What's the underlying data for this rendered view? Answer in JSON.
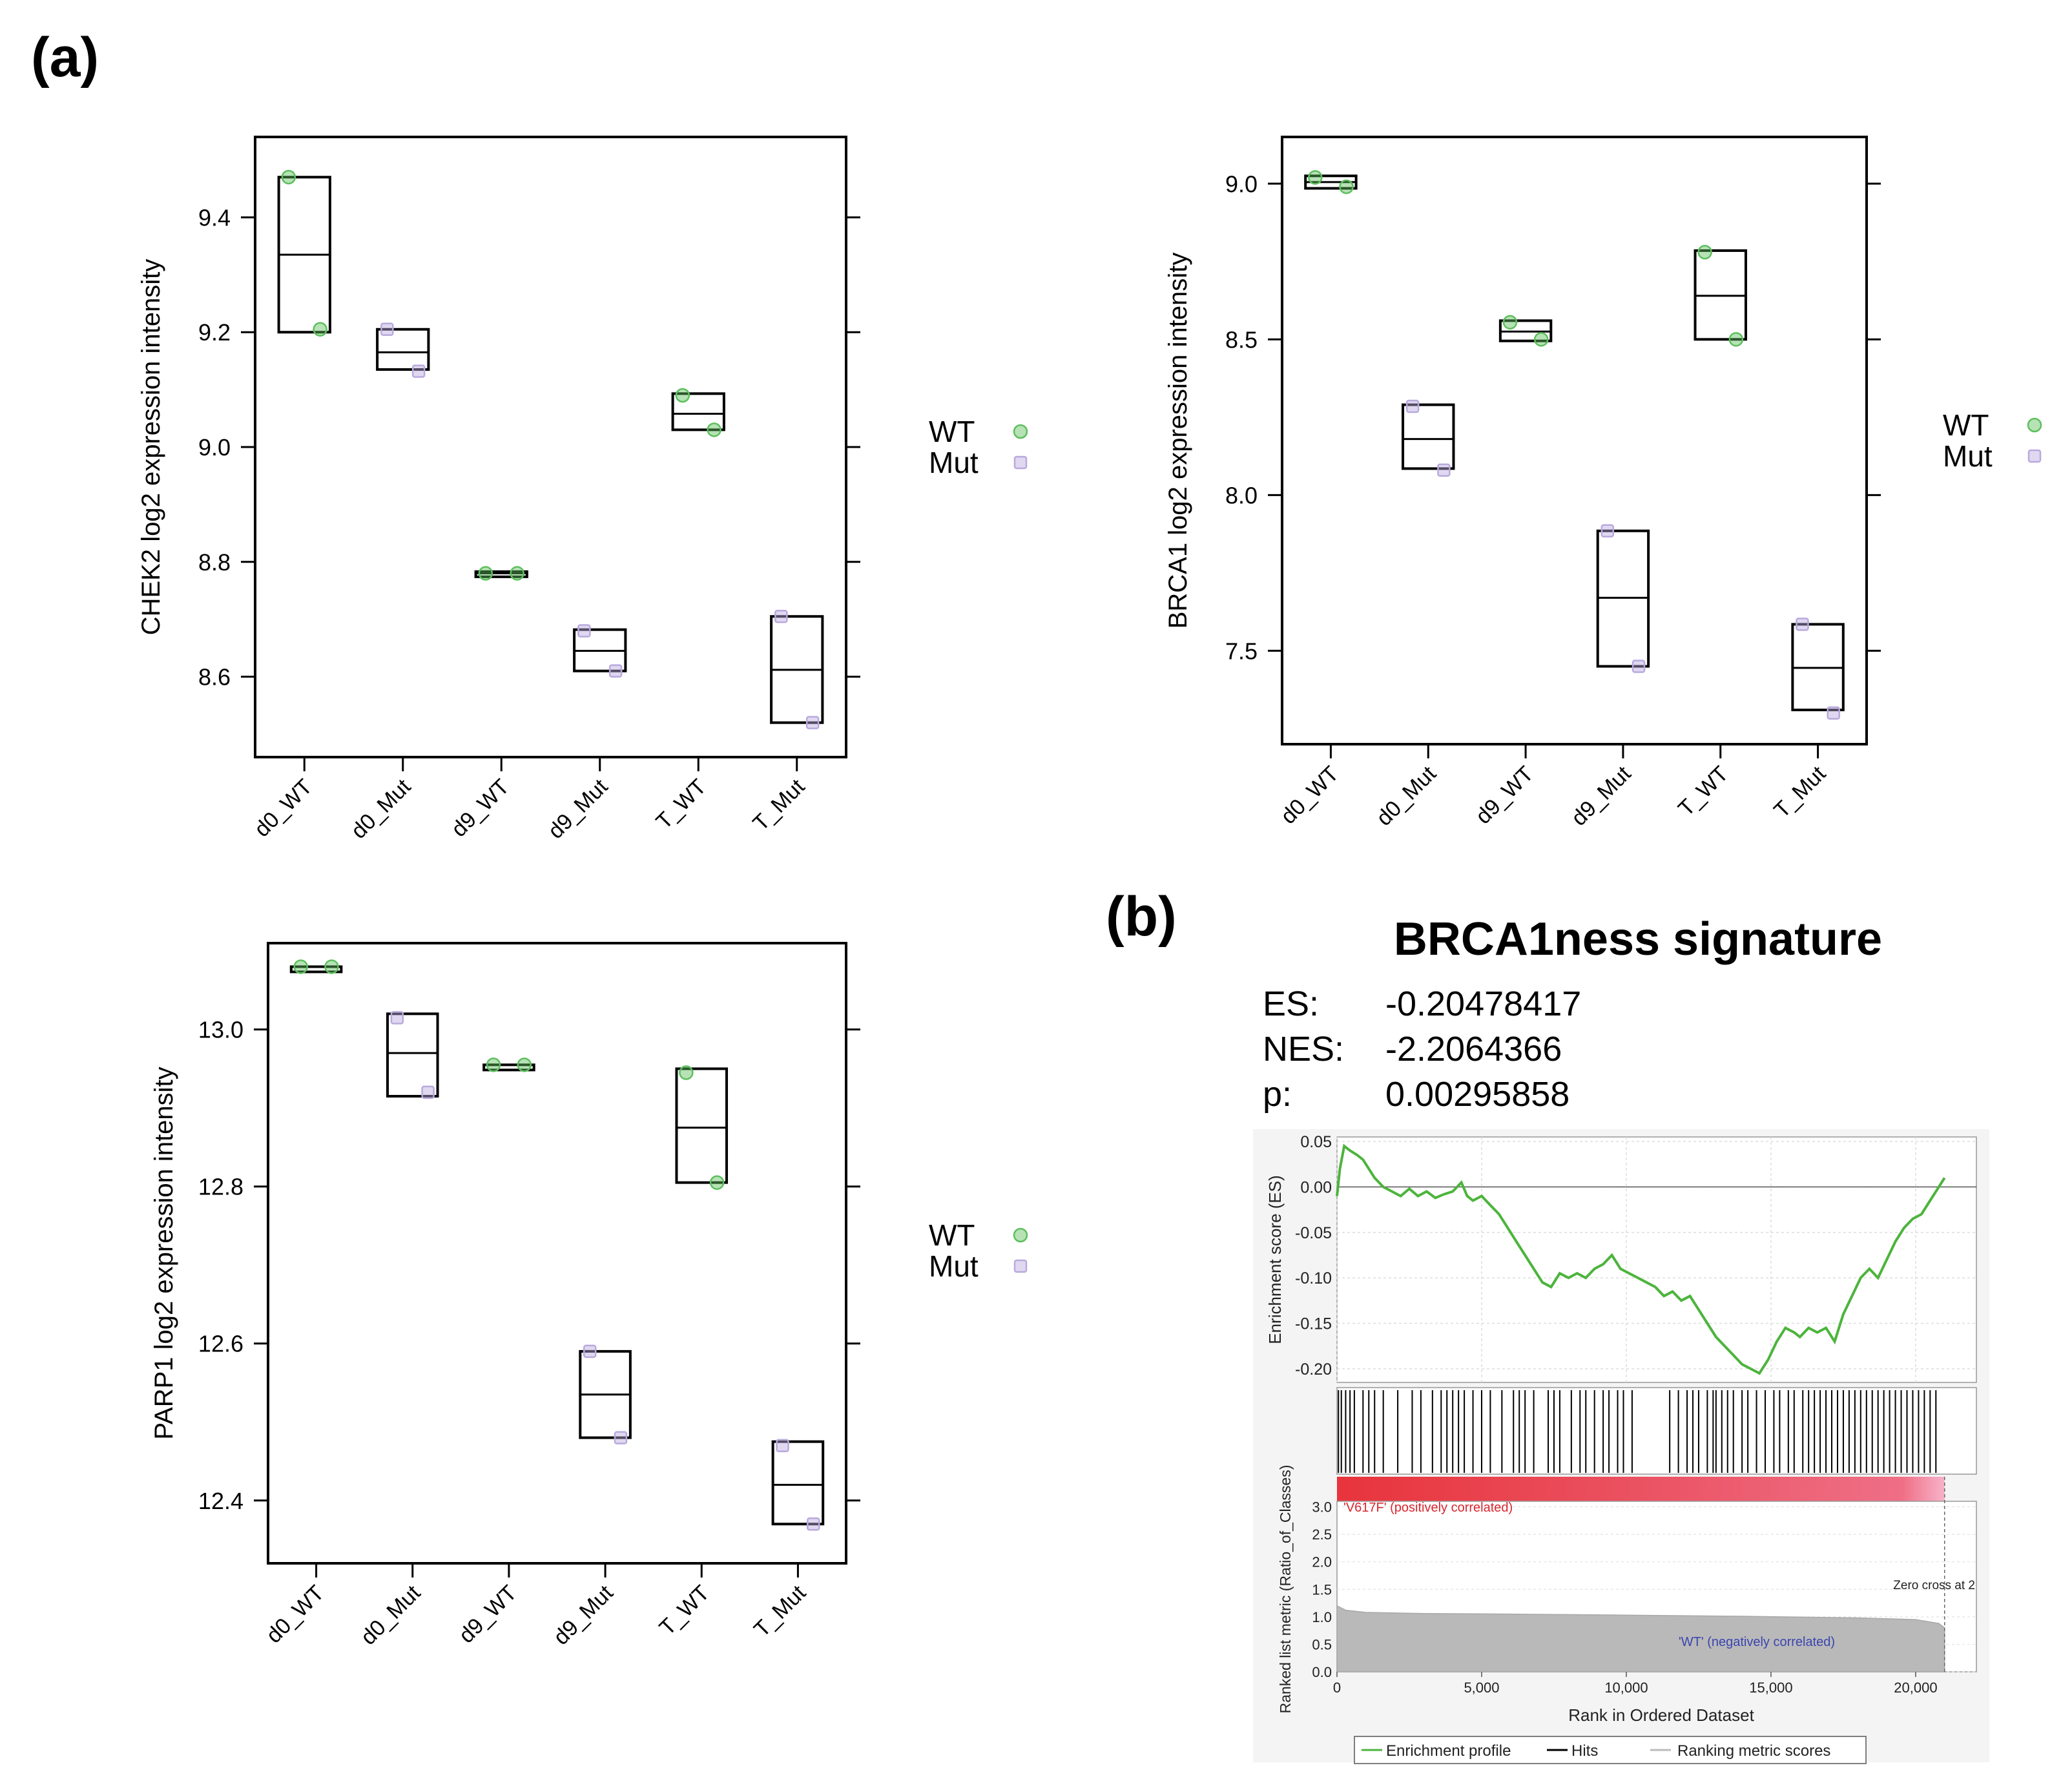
{
  "panel_labels": {
    "a": "(a)",
    "b": "(b)"
  },
  "legend": {
    "wt": "WT",
    "mut": "Mut"
  },
  "colors": {
    "wt": "#5dbf5d",
    "mut": "#b9a9dd",
    "gsea_line": "#4cb43c",
    "red": "#e8343c",
    "pink": "#f7b3c9",
    "metric_fill": "#b9b9b9",
    "frame": "#000000"
  },
  "chart_data": [
    {
      "id": "chek2",
      "type": "box",
      "ylabel": "CHEK2 log2 expression intensity",
      "categories": [
        "d0_WT",
        "d0_Mut",
        "d9_WT",
        "d9_Mut",
        "T_WT",
        "T_Mut"
      ],
      "group": [
        "WT",
        "Mut",
        "WT",
        "Mut",
        "WT",
        "Mut"
      ],
      "boxes": [
        [
          9.2,
          9.335,
          9.47
        ],
        [
          9.135,
          9.165,
          9.205
        ],
        [
          8.777,
          8.78,
          8.783
        ],
        [
          8.61,
          8.645,
          8.682
        ],
        [
          9.03,
          9.058,
          9.093
        ],
        [
          8.52,
          8.612,
          8.705
        ]
      ],
      "points": [
        [
          9.47,
          9.205
        ],
        [
          9.205,
          9.132
        ],
        [
          8.78,
          8.78
        ],
        [
          8.68,
          8.61
        ],
        [
          9.09,
          9.03
        ],
        [
          8.705,
          8.52
        ]
      ],
      "ylim": [
        8.46,
        9.54
      ],
      "yticks": [
        8.6,
        8.8,
        9.0,
        9.2,
        9.4
      ],
      "ytick_labels": [
        "8.6",
        "8.8",
        "9.0",
        "9.2",
        "9.4"
      ]
    },
    {
      "id": "brca1",
      "type": "box",
      "ylabel": "BRCA1 log2 expression intensity",
      "categories": [
        "d0_WT",
        "d0_Mut",
        "d9_WT",
        "d9_Mut",
        "T_WT",
        "T_Mut"
      ],
      "group": [
        "WT",
        "Mut",
        "WT",
        "Mut",
        "WT",
        "Mut"
      ],
      "boxes": [
        [
          8.985,
          9.005,
          9.025
        ],
        [
          8.085,
          8.18,
          8.29
        ],
        [
          8.495,
          8.525,
          8.56
        ],
        [
          7.45,
          7.67,
          7.885
        ],
        [
          8.5,
          8.64,
          8.785
        ],
        [
          7.31,
          7.445,
          7.585
        ]
      ],
      "points": [
        [
          9.02,
          8.99
        ],
        [
          8.285,
          8.08
        ],
        [
          8.555,
          8.5
        ],
        [
          7.885,
          7.45
        ],
        [
          8.78,
          8.5
        ],
        [
          7.585,
          7.3
        ]
      ],
      "ylim": [
        7.2,
        9.15
      ],
      "yticks": [
        7.5,
        8.0,
        8.5,
        9.0
      ],
      "ytick_labels": [
        "7.5",
        "8.0",
        "8.5",
        "9.0"
      ]
    },
    {
      "id": "parp1",
      "type": "box",
      "ylabel": "PARP1 log2 expression intensity",
      "categories": [
        "d0_WT",
        "d0_Mut",
        "d9_WT",
        "d9_Mut",
        "T_WT",
        "T_Mut"
      ],
      "group": [
        "WT",
        "Mut",
        "WT",
        "Mut",
        "WT",
        "Mut"
      ],
      "boxes": [
        [
          13.08,
          13.08,
          13.08
        ],
        [
          12.915,
          12.97,
          13.02
        ],
        [
          12.955,
          12.955,
          12.955
        ],
        [
          12.48,
          12.535,
          12.59
        ],
        [
          12.805,
          12.875,
          12.95
        ],
        [
          12.37,
          12.42,
          12.475
        ]
      ],
      "points": [
        [
          13.08,
          13.08
        ],
        [
          13.015,
          12.92
        ],
        [
          12.955,
          12.955
        ],
        [
          12.59,
          12.48
        ],
        [
          12.945,
          12.805
        ],
        [
          12.47,
          12.37
        ]
      ],
      "ylim": [
        12.32,
        13.11
      ],
      "yticks": [
        12.4,
        12.6,
        12.8,
        13.0
      ],
      "ytick_labels": [
        "12.4",
        "12.6",
        "12.8",
        "13.0"
      ]
    },
    {
      "id": "gsea",
      "type": "line",
      "title": "BRCA1ness signature",
      "stats": [
        {
          "label": "ES:",
          "value": "-0.20478417"
        },
        {
          "label": "NES:",
          "value": "-2.2064366"
        },
        {
          "label": "p:",
          "value": "0.00295858"
        }
      ],
      "es_ylabel": "Enrichment score (ES)",
      "es_yticks": [
        0.05,
        0.0,
        -0.05,
        -0.1,
        -0.15,
        -0.2
      ],
      "es_ytick_labels": [
        "0.05",
        "0.00",
        "-0.05",
        "-0.10",
        "-0.15",
        "-0.20"
      ],
      "es_ylim": [
        -0.215,
        0.055
      ],
      "xlim": [
        0,
        22100
      ],
      "es_x": [
        0,
        100,
        250,
        450,
        700,
        900,
        1100,
        1300,
        1600,
        1900,
        2200,
        2500,
        2800,
        3100,
        3400,
        3700,
        4000,
        4300,
        4500,
        4700,
        5000,
        5300,
        5600,
        5900,
        6200,
        6500,
        6800,
        7100,
        7400,
        7700,
        8000,
        8300,
        8600,
        8900,
        9200,
        9500,
        9800,
        10100,
        10400,
        10700,
        11000,
        11300,
        11600,
        11900,
        12200,
        12500,
        12800,
        13100,
        13400,
        13700,
        14000,
        14300,
        14600,
        14900,
        15200,
        15500,
        15800,
        16000,
        16300,
        16600,
        16900,
        17200,
        17500,
        17800,
        18100,
        18400,
        18700,
        19000,
        19300,
        19600,
        19900,
        20200,
        20500,
        20800,
        21000
      ],
      "es_y": [
        -0.01,
        0.02,
        0.045,
        0.04,
        0.035,
        0.03,
        0.02,
        0.01,
        0.0,
        -0.005,
        -0.01,
        -0.002,
        -0.01,
        -0.005,
        -0.012,
        -0.008,
        -0.005,
        0.005,
        -0.01,
        -0.015,
        -0.01,
        -0.02,
        -0.03,
        -0.045,
        -0.06,
        -0.075,
        -0.09,
        -0.105,
        -0.11,
        -0.095,
        -0.1,
        -0.095,
        -0.1,
        -0.09,
        -0.085,
        -0.075,
        -0.09,
        -0.095,
        -0.1,
        -0.105,
        -0.11,
        -0.12,
        -0.115,
        -0.125,
        -0.12,
        -0.135,
        -0.15,
        -0.165,
        -0.175,
        -0.185,
        -0.195,
        -0.2,
        -0.205,
        -0.19,
        -0.17,
        -0.155,
        -0.16,
        -0.165,
        -0.155,
        -0.16,
        -0.155,
        -0.17,
        -0.14,
        -0.12,
        -0.1,
        -0.09,
        -0.1,
        -0.08,
        -0.06,
        -0.045,
        -0.035,
        -0.03,
        -0.015,
        0.0,
        0.01
      ],
      "hits": [
        50,
        150,
        300,
        450,
        600,
        900,
        1100,
        1300,
        1600,
        2100,
        2600,
        2900,
        3300,
        3600,
        3800,
        4000,
        4200,
        4400,
        4700,
        5000,
        5300,
        5700,
        6100,
        6300,
        6500,
        6800,
        7300,
        7500,
        7700,
        8100,
        8400,
        8600,
        8900,
        9200,
        9400,
        9700,
        9900,
        10200,
        11500,
        11800,
        12100,
        12300,
        12500,
        12800,
        13000,
        13100,
        13300,
        13500,
        13700,
        14000,
        14200,
        14500,
        14800,
        15100,
        15300,
        15600,
        15800,
        16100,
        16300,
        16500,
        16700,
        16900,
        17100,
        17300,
        17500,
        17700,
        17900,
        18100,
        18300,
        18500,
        18700,
        18900,
        19100,
        19300,
        19500,
        19700,
        19900,
        20100,
        20300,
        20500,
        20700
      ],
      "rank_ylabel": "Ranked list metric (Ratio_of_Classes)",
      "rank_yticks": [
        0.0,
        0.5,
        1.0,
        1.5,
        2.0,
        2.5,
        3.0
      ],
      "rank_ytick_labels": [
        "0.0",
        "0.5",
        "1.0",
        "1.5",
        "2.0",
        "2.5",
        "3.0"
      ],
      "rank_ylim": [
        0,
        3.1
      ],
      "metric_x": [
        0,
        300,
        1000,
        3000,
        6000,
        10000,
        14000,
        18000,
        20000,
        20800,
        21000
      ],
      "metric_y": [
        1.2,
        1.12,
        1.08,
        1.06,
        1.05,
        1.03,
        1.01,
        0.98,
        0.95,
        0.88,
        0.8
      ],
      "xticks": [
        0,
        5000,
        10000,
        15000,
        20000
      ],
      "xtick_labels": [
        "0",
        "5,000",
        "10,000",
        "15,000",
        "20,000"
      ],
      "xlabel": "Rank in Ordered Dataset",
      "pos_label": "'V617F' (positively correlated)",
      "neg_label": "'WT' (negatively correlated)",
      "zero_cross_label": "Zero cross at 2",
      "legend": [
        "Enrichment profile",
        "Hits",
        "Ranking metric scores"
      ]
    }
  ]
}
